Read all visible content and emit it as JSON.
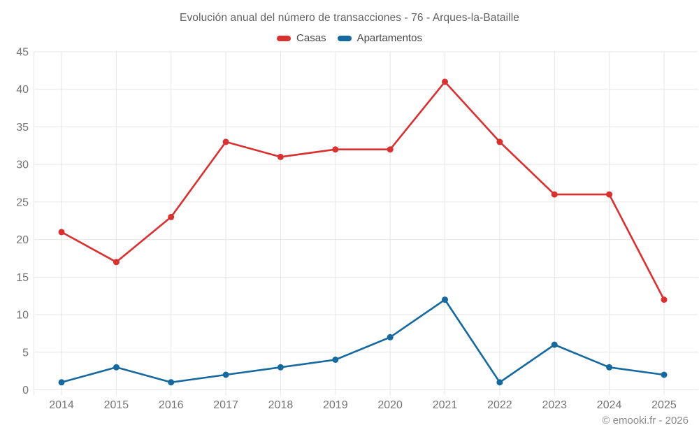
{
  "title": "Evolución anual del número de transacciones - 76 - Arques-la-Bataille",
  "copyright": "© emooki.fr - 2026",
  "colors": {
    "casas": "#d93030",
    "apartamentos": "#16699e",
    "grid": "#e6e6e6",
    "axis_text": "#757575",
    "title_text": "#616161",
    "legend_text": "#474747"
  },
  "chart_data": {
    "type": "line",
    "x": [
      2014,
      2015,
      2016,
      2017,
      2018,
      2019,
      2020,
      2021,
      2022,
      2023,
      2024,
      2025
    ],
    "series": [
      {
        "name": "Casas",
        "color": "#d93030",
        "values": [
          21,
          17,
          23,
          33,
          31,
          32,
          32,
          41,
          33,
          26,
          26,
          12
        ]
      },
      {
        "name": "Apartamentos",
        "color": "#16699e",
        "values": [
          1,
          3,
          1,
          2,
          3,
          4,
          7,
          12,
          1,
          6,
          3,
          2
        ]
      }
    ],
    "title": "Evolución anual del número de transacciones - 76 - Arques-la-Bataille",
    "xlabel": "",
    "ylabel": "",
    "ylim": [
      0,
      45
    ],
    "yticks": [
      0,
      5,
      10,
      15,
      20,
      25,
      30,
      35,
      40,
      45
    ],
    "grid": true,
    "legend_position": "top"
  }
}
